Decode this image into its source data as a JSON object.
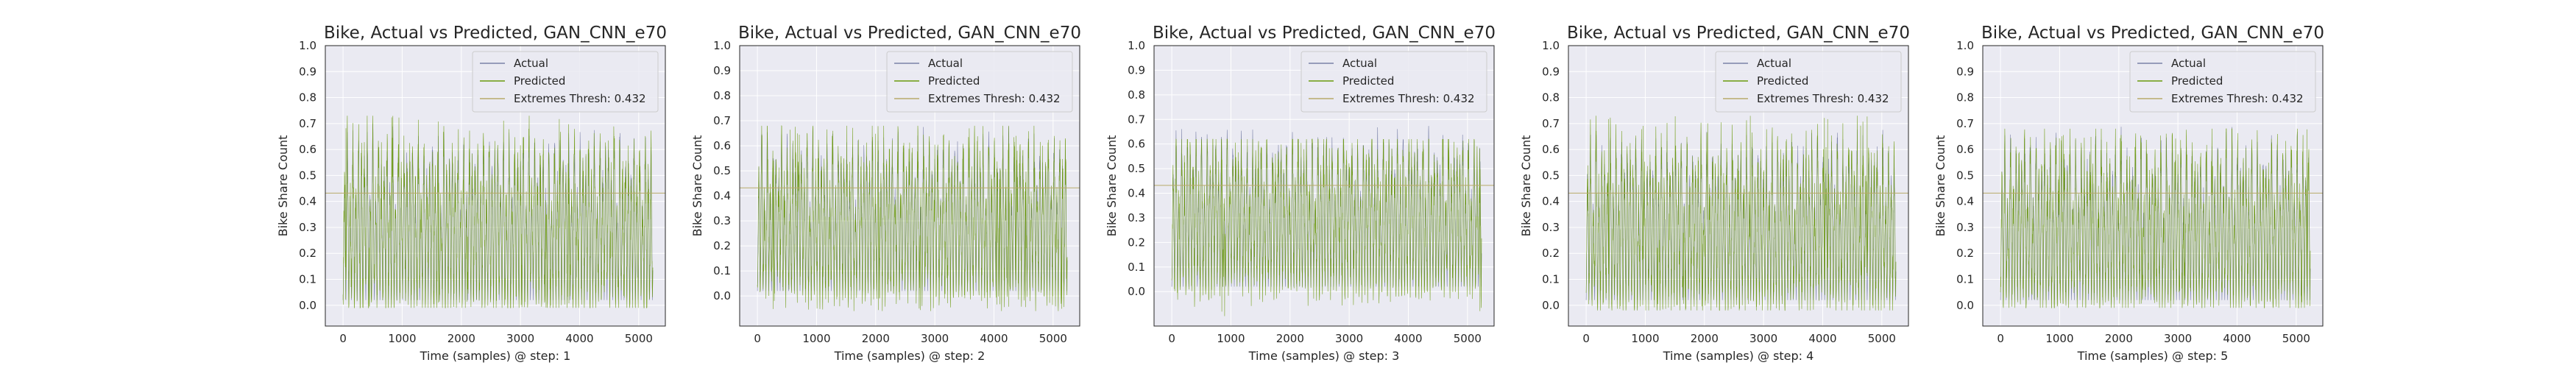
{
  "figure": {
    "colors": {
      "actual": "#7b82a8",
      "predicted": "#6b9a0c",
      "thresh": "#b7aa6a",
      "plot_bg": "#eaeaf2",
      "grid": "#ffffff"
    }
  },
  "chart_data": [
    {
      "type": "line",
      "title": "Bike, Actual vs Predicted, GAN_CNN_e70",
      "xlabel": "Time (samples) @ step: 1",
      "ylabel": "Bike Share Count",
      "xlim": [
        -300,
        5450
      ],
      "ylim": [
        -0.08,
        1.0
      ],
      "xticks": [
        "0",
        "1000",
        "2000",
        "3000",
        "4000",
        "5000"
      ],
      "yticks": [
        "0.0",
        "0.1",
        "0.2",
        "0.3",
        "0.4",
        "0.5",
        "0.6",
        "0.7",
        "0.8",
        "0.9",
        "1.0"
      ],
      "grid": true,
      "legend_position": "upper-right",
      "n_samples": 5240,
      "series": [
        {
          "name": "Actual",
          "peak_max": 0.7,
          "baseline_min": 0.02,
          "key": "actual"
        },
        {
          "name": "Predicted",
          "peak_max": 0.73,
          "baseline_min": -0.01,
          "key": "predicted"
        },
        {
          "name": "Extremes Thresh: 0.432",
          "value": 0.432,
          "key": "thresh"
        }
      ]
    },
    {
      "type": "line",
      "title": "Bike, Actual vs Predicted, GAN_CNN_e70",
      "xlabel": "Time (samples) @ step: 2",
      "ylabel": "Bike Share Count",
      "xlim": [
        -300,
        5450
      ],
      "ylim": [
        -0.12,
        1.0
      ],
      "xticks": [
        "0",
        "1000",
        "2000",
        "3000",
        "4000",
        "5000"
      ],
      "yticks": [
        "0.0",
        "0.1",
        "0.2",
        "0.3",
        "0.4",
        "0.5",
        "0.6",
        "0.7",
        "0.8",
        "0.9",
        "1.0"
      ],
      "grid": true,
      "legend_position": "upper-right",
      "n_samples": 5240,
      "series": [
        {
          "name": "Actual",
          "peak_max": 0.68,
          "baseline_min": 0.02,
          "key": "actual"
        },
        {
          "name": "Predicted",
          "peak_max": 0.68,
          "baseline_min": -0.06,
          "key": "predicted"
        },
        {
          "name": "Extremes Thresh: 0.432",
          "value": 0.432,
          "key": "thresh"
        }
      ]
    },
    {
      "type": "line",
      "title": "Bike, Actual vs Predicted, GAN_CNN_e70",
      "xlabel": "Time (samples) @ step: 3",
      "ylabel": "Bike Share Count",
      "xlim": [
        -300,
        5450
      ],
      "ylim": [
        -0.14,
        1.0
      ],
      "xticks": [
        "0",
        "1000",
        "2000",
        "3000",
        "4000",
        "5000"
      ],
      "yticks": [
        "0.0",
        "0.1",
        "0.2",
        "0.3",
        "0.4",
        "0.5",
        "0.6",
        "0.7",
        "0.8",
        "0.9",
        "1.0"
      ],
      "grid": true,
      "legend_position": "upper-right",
      "n_samples": 5240,
      "series": [
        {
          "name": "Actual",
          "peak_max": 0.69,
          "baseline_min": 0.02,
          "key": "actual"
        },
        {
          "name": "Predicted",
          "peak_max": 0.62,
          "baseline_min": -0.1,
          "key": "predicted"
        },
        {
          "name": "Extremes Thresh: 0.432",
          "value": 0.432,
          "key": "thresh"
        }
      ]
    },
    {
      "type": "line",
      "title": "Bike, Actual vs Predicted, GAN_CNN_e70",
      "xlabel": "Time (samples) @ step: 4",
      "ylabel": "Bike Share Count",
      "xlim": [
        -300,
        5450
      ],
      "ylim": [
        -0.08,
        1.0
      ],
      "xticks": [
        "0",
        "1000",
        "2000",
        "3000",
        "4000",
        "5000"
      ],
      "yticks": [
        "0.0",
        "0.1",
        "0.2",
        "0.3",
        "0.4",
        "0.5",
        "0.6",
        "0.7",
        "0.8",
        "0.9",
        "1.0"
      ],
      "grid": true,
      "legend_position": "upper-right",
      "n_samples": 5240,
      "series": [
        {
          "name": "Actual",
          "peak_max": 0.69,
          "baseline_min": 0.02,
          "key": "actual"
        },
        {
          "name": "Predicted",
          "peak_max": 0.73,
          "baseline_min": -0.02,
          "key": "predicted"
        },
        {
          "name": "Extremes Thresh: 0.432",
          "value": 0.432,
          "key": "thresh"
        }
      ]
    },
    {
      "type": "line",
      "title": "Bike, Actual vs Predicted, GAN_CNN_e70",
      "xlabel": "Time (samples) @ step: 5",
      "ylabel": "Bike Share Count",
      "xlim": [
        -300,
        5450
      ],
      "ylim": [
        -0.08,
        1.0
      ],
      "xticks": [
        "0",
        "1000",
        "2000",
        "3000",
        "4000",
        "5000"
      ],
      "yticks": [
        "0.0",
        "0.1",
        "0.2",
        "0.3",
        "0.4",
        "0.5",
        "0.6",
        "0.7",
        "0.8",
        "0.9",
        "1.0"
      ],
      "grid": true,
      "legend_position": "upper-right",
      "n_samples": 5240,
      "series": [
        {
          "name": "Actual",
          "peak_max": 0.69,
          "baseline_min": 0.02,
          "key": "actual"
        },
        {
          "name": "Predicted",
          "peak_max": 0.68,
          "baseline_min": -0.01,
          "key": "predicted"
        },
        {
          "name": "Extremes Thresh: 0.432",
          "value": 0.432,
          "key": "thresh"
        }
      ]
    }
  ]
}
